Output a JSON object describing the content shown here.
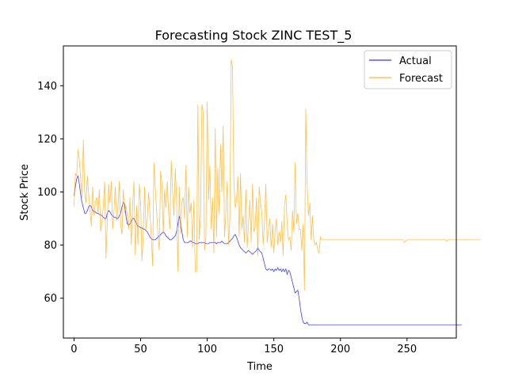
{
  "chart_data": {
    "type": "line",
    "title": "Forecasting Stock ZINC TEST_5",
    "xlabel": "Time",
    "ylabel": "Stock Price",
    "xlim": [
      -8,
      287
    ],
    "ylim": [
      45,
      155
    ],
    "xticks": [
      0,
      50,
      100,
      150,
      200,
      250
    ],
    "yticks": [
      60,
      80,
      100,
      120,
      140
    ],
    "grid": false,
    "legend_position": "top-right",
    "x_start": 0,
    "series": [
      {
        "name": "Actual",
        "color": "#0000ff",
        "values": [
          98.5,
          102,
          105,
          106,
          103,
          99,
          96,
          94,
          92,
          92,
          93,
          94.5,
          95,
          94.5,
          93,
          92.5,
          92.5,
          92,
          92,
          91.5,
          91.5,
          91,
          90.5,
          90,
          90,
          92,
          93,
          92.5,
          91.5,
          91,
          90.5,
          90.5,
          90,
          90,
          91,
          92,
          94.5,
          96,
          95.5,
          91,
          88,
          87.5,
          88,
          89,
          90,
          90,
          89,
          88,
          87,
          87,
          86.5,
          86.5,
          86,
          86,
          85.5,
          85,
          84,
          83,
          82.5,
          82,
          82,
          82,
          82.5,
          83,
          83.5,
          84,
          84.5,
          85,
          84.5,
          83.5,
          83,
          82.5,
          82,
          82,
          82.5,
          83,
          83.5,
          85,
          88,
          91,
          88,
          85,
          82,
          81,
          81,
          81,
          81,
          81.5,
          81.5,
          81,
          81,
          80.5,
          80.5,
          80.5,
          81,
          81,
          81,
          81,
          81,
          80.5,
          80.5,
          80.5,
          81,
          81,
          81,
          81,
          81,
          80.5,
          81,
          81,
          81,
          81.5,
          81,
          80.5,
          80.5,
          80.5,
          81,
          81.5,
          82,
          82.5,
          83.5,
          84,
          83,
          81.5,
          80,
          79,
          78.5,
          78,
          77.5,
          77,
          77.5,
          78,
          77.5,
          77,
          76.5,
          77,
          77.5,
          78,
          79,
          78,
          77.5,
          77,
          75,
          73,
          71,
          70.5,
          71,
          71,
          70.5,
          71,
          70,
          71,
          70.5,
          71.5,
          70.5,
          71,
          70,
          71,
          70,
          71,
          69,
          70.5,
          70,
          68,
          66,
          64,
          62,
          62.5,
          63,
          60,
          56,
          53,
          51,
          50.5,
          50.5,
          51,
          50,
          50,
          50,
          50,
          50,
          50,
          50,
          50,
          50,
          50,
          50,
          50,
          50,
          50,
          50,
          50,
          50,
          50,
          50,
          50,
          50,
          50,
          50,
          50,
          50,
          50,
          50,
          50,
          50,
          50,
          50,
          50,
          50,
          50,
          50,
          50,
          50,
          50,
          50,
          50,
          50,
          50,
          50,
          50,
          50,
          50,
          50,
          50,
          50,
          50,
          50,
          50,
          50,
          50,
          50,
          50,
          50,
          50,
          50,
          50,
          50,
          50,
          50,
          50,
          50,
          50,
          50,
          50,
          50,
          50,
          50,
          50,
          50,
          50,
          50,
          50,
          50,
          50,
          50,
          50,
          50,
          50,
          50,
          50,
          50,
          50,
          50,
          50,
          50,
          50,
          50,
          50,
          50,
          50,
          50,
          50,
          50,
          50,
          50,
          50,
          50,
          50,
          50,
          50,
          50,
          50,
          50,
          50,
          50,
          50,
          50,
          50,
          50,
          50,
          50,
          50
        ]
      },
      {
        "name": "Forecast",
        "color": "#ffa500",
        "values": [
          94.5,
          107,
          106,
          116,
          112,
          105,
          98,
          119.5,
          100,
          96,
          106,
          99,
          93,
          87,
          102,
          91,
          96,
          98,
          92,
          101,
          85,
          89,
          95,
          104,
          75,
          89,
          103,
          96,
          104,
          86,
          93,
          102,
          89,
          94,
          104,
          88,
          84,
          101,
          92,
          95,
          91,
          86,
          98,
          80,
          95,
          104,
          76,
          95,
          80,
          103,
          96,
          74,
          84,
          102,
          86,
          90,
          100,
          92,
          83,
          72,
          111,
          101,
          93,
          84,
          78,
          108,
          103,
          84,
          101,
          94,
          104,
          92,
          86,
          112,
          100,
          91,
          109,
          97,
          70,
          102,
          84,
          96,
          98,
          90,
          110,
          83,
          102,
          92,
          96,
          79,
          97,
          70,
          70,
          133,
          82,
          91,
          133,
          130,
          78,
          83,
          134,
          97,
          110,
          86,
          98,
          77,
          124,
          83,
          109,
          92,
          118,
          100,
          125,
          83,
          92,
          104,
          80,
          90,
          150,
          147,
          104,
          94,
          97,
          106,
          83,
          107,
          86,
          91,
          81,
          101,
          79,
          88,
          97,
          81,
          103,
          85,
          87,
          98,
          76,
          102,
          96,
          92,
          80,
          89,
          103,
          81,
          86,
          90,
          79,
          88,
          77,
          85,
          90,
          80,
          85,
          81,
          89,
          76,
          95,
          99,
          88,
          82,
          83,
          78,
          93,
          85,
          111,
          88,
          92,
          86,
          86,
          78,
          88,
          63,
          131.5,
          103,
          91,
          96,
          82,
          91,
          82,
          80,
          81,
          78,
          77,
          83,
          82,
          82,
          82,
          82,
          82,
          82,
          82,
          82,
          82,
          82,
          82,
          82,
          82,
          82,
          82,
          82,
          82,
          82,
          82,
          82,
          82,
          82,
          82,
          82,
          82,
          82,
          82,
          82,
          82,
          82,
          82,
          82,
          82,
          82,
          82,
          82,
          82,
          82,
          82,
          82,
          82,
          82,
          82,
          82,
          82,
          82,
          82,
          82,
          82,
          82,
          82,
          82,
          82,
          82,
          82,
          82,
          82,
          82,
          82,
          82,
          82,
          82,
          81,
          81.5,
          82,
          82,
          82,
          82,
          82,
          82,
          82,
          82,
          82,
          82,
          82,
          82,
          82,
          82,
          82,
          82,
          82,
          82,
          82,
          82,
          82,
          82,
          82,
          82,
          82,
          82,
          82,
          82,
          82,
          82,
          81.5,
          82,
          82,
          82,
          82,
          82,
          82,
          82,
          82,
          82,
          82,
          82,
          82,
          82,
          82,
          82,
          82,
          82,
          82,
          82,
          82,
          82,
          82,
          82,
          82,
          82
        ]
      }
    ]
  }
}
